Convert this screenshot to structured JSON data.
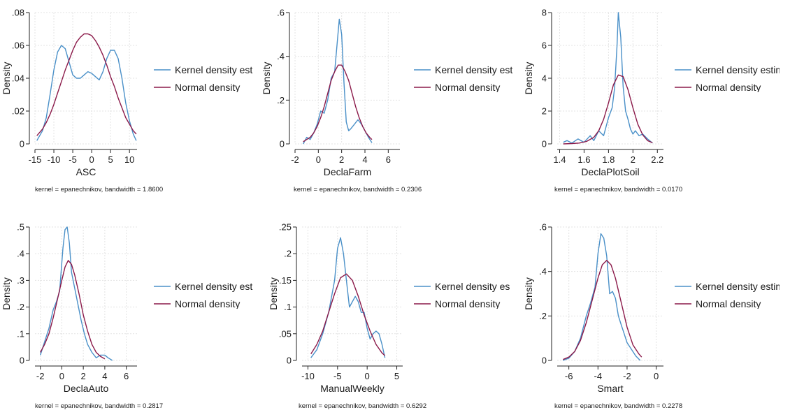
{
  "legend": {
    "kernel_color": "#4a90c8",
    "normal_color": "#8b1a4a"
  },
  "chart_data": [
    {
      "type": "line",
      "xlabel": "ASC",
      "ylabel": "Density",
      "note": "kernel = epanechnikov, bandwidth = 1.8600",
      "xlim": [
        -15,
        12
      ],
      "ylim": [
        0,
        0.08
      ],
      "xticks": [
        -15,
        -10,
        -5,
        0,
        5,
        10
      ],
      "xtick_labels": [
        "-15",
        "-10",
        "-5",
        "0",
        "5",
        "10"
      ],
      "yticks": [
        0,
        0.02,
        0.04,
        0.06,
        0.08
      ],
      "ytick_labels": [
        "0",
        ".02",
        ".04",
        ".06",
        ".08"
      ],
      "legend_labels": [
        "Kernel density est",
        "Normal density"
      ],
      "series": [
        {
          "name": "Kernel density est",
          "x": [
            -14.5,
            -13,
            -12,
            -11,
            -10,
            -9,
            -8,
            -7,
            -6,
            -5,
            -4,
            -3,
            -2,
            -1,
            0,
            1,
            2,
            3,
            4,
            5,
            6,
            7,
            8,
            9,
            10,
            11,
            11.8
          ],
          "y": [
            0.002,
            0.008,
            0.016,
            0.03,
            0.045,
            0.056,
            0.06,
            0.058,
            0.05,
            0.042,
            0.04,
            0.04,
            0.042,
            0.044,
            0.043,
            0.041,
            0.039,
            0.044,
            0.052,
            0.057,
            0.057,
            0.052,
            0.04,
            0.025,
            0.014,
            0.006,
            0.002
          ]
        },
        {
          "name": "Normal density",
          "x": [
            -14.5,
            -13,
            -12,
            -11,
            -10,
            -9,
            -8,
            -7,
            -6,
            -5,
            -4,
            -3,
            -2,
            -1,
            0,
            1,
            2,
            3,
            4,
            5,
            6,
            7,
            8,
            9,
            10,
            11,
            11.8
          ],
          "y": [
            0.005,
            0.009,
            0.013,
            0.018,
            0.024,
            0.031,
            0.038,
            0.045,
            0.051,
            0.057,
            0.062,
            0.065,
            0.067,
            0.067,
            0.066,
            0.063,
            0.059,
            0.054,
            0.048,
            0.041,
            0.035,
            0.028,
            0.022,
            0.016,
            0.012,
            0.008,
            0.006
          ]
        }
      ]
    },
    {
      "type": "line",
      "xlabel": "DeclaFarm",
      "ylabel": "Density",
      "note": "kernel = epanechnikov, bandwidth = 0.2306",
      "xlim": [
        -2,
        7
      ],
      "ylim": [
        0,
        0.6
      ],
      "xticks": [
        -2,
        0,
        2,
        4,
        6
      ],
      "xtick_labels": [
        "-2",
        "0",
        "2",
        "4",
        "6"
      ],
      "yticks": [
        0,
        0.2,
        0.4,
        0.6
      ],
      "ytick_labels": [
        "0",
        ".2",
        ".4",
        ".6"
      ],
      "legend_labels": [
        "Kernel density est",
        "Normal density"
      ],
      "series": [
        {
          "name": "Kernel density est",
          "x": [
            -1.3,
            -1,
            -0.7,
            -0.4,
            -0.1,
            0.2,
            0.5,
            0.8,
            1.1,
            1.4,
            1.6,
            1.8,
            2,
            2.2,
            2.4,
            2.6,
            2.8,
            3.1,
            3.4,
            3.7,
            4,
            4.3,
            4.6
          ],
          "y": [
            0.0,
            0.03,
            0.02,
            0.05,
            0.09,
            0.15,
            0.14,
            0.2,
            0.3,
            0.33,
            0.45,
            0.57,
            0.5,
            0.28,
            0.1,
            0.06,
            0.07,
            0.09,
            0.11,
            0.09,
            0.06,
            0.03,
            0.005
          ]
        },
        {
          "name": "Normal density",
          "x": [
            -1.3,
            -1,
            -0.7,
            -0.4,
            -0.1,
            0.2,
            0.5,
            0.8,
            1.1,
            1.4,
            1.7,
            2,
            2.3,
            2.6,
            2.9,
            3.2,
            3.5,
            3.8,
            4.1,
            4.4,
            4.6
          ],
          "y": [
            0.01,
            0.02,
            0.03,
            0.05,
            0.08,
            0.12,
            0.17,
            0.23,
            0.29,
            0.33,
            0.36,
            0.36,
            0.33,
            0.29,
            0.23,
            0.17,
            0.12,
            0.08,
            0.05,
            0.03,
            0.02
          ]
        }
      ]
    },
    {
      "type": "line",
      "xlabel": "DeclaPlotSoil",
      "ylabel": "Density",
      "note": "kernel = epanechnikov, bandwidth = 0.0170",
      "xlim": [
        1.38,
        2.25
      ],
      "ylim": [
        0,
        8
      ],
      "xticks": [
        1.4,
        1.6,
        1.8,
        2,
        2.2
      ],
      "xtick_labels": [
        "1.4",
        "1.6",
        "1.8",
        "2",
        "2.2"
      ],
      "yticks": [
        0,
        2,
        4,
        6,
        8
      ],
      "ytick_labels": [
        "0",
        "2",
        "4",
        "6",
        "8"
      ],
      "legend_labels": [
        "Kernel density estim",
        "Normal density"
      ],
      "series": [
        {
          "name": "Kernel density estim",
          "x": [
            1.43,
            1.46,
            1.5,
            1.55,
            1.6,
            1.65,
            1.68,
            1.72,
            1.76,
            1.8,
            1.83,
            1.85,
            1.87,
            1.88,
            1.9,
            1.92,
            1.94,
            1.96,
            1.98,
            2.0,
            2.02,
            2.05,
            2.08,
            2.12,
            2.16
          ],
          "y": [
            0.1,
            0.2,
            0.05,
            0.3,
            0.1,
            0.5,
            0.2,
            0.8,
            0.5,
            1.6,
            2.2,
            3.4,
            6.0,
            8.0,
            6.5,
            3.5,
            2.0,
            1.5,
            0.9,
            0.6,
            0.8,
            0.5,
            0.6,
            0.3,
            0.05
          ]
        },
        {
          "name": "Normal density",
          "x": [
            1.43,
            1.5,
            1.56,
            1.62,
            1.68,
            1.72,
            1.76,
            1.8,
            1.84,
            1.88,
            1.92,
            1.96,
            2.0,
            2.04,
            2.08,
            2.12,
            2.16
          ],
          "y": [
            0.0,
            0.02,
            0.05,
            0.15,
            0.4,
            0.8,
            1.5,
            2.5,
            3.6,
            4.2,
            4.1,
            3.3,
            2.2,
            1.2,
            0.55,
            0.2,
            0.07
          ]
        }
      ]
    },
    {
      "type": "line",
      "xlabel": "DeclaAuto",
      "ylabel": "Density",
      "note": "kernel = epanechnikov, bandwidth = 0.2817",
      "xlim": [
        -2.5,
        7
      ],
      "ylim": [
        0,
        0.5
      ],
      "xticks": [
        -2,
        0,
        2,
        4,
        6
      ],
      "xtick_labels": [
        "-2",
        "0",
        "2",
        "4",
        "6"
      ],
      "yticks": [
        0,
        0.1,
        0.2,
        0.3,
        0.4,
        0.5
      ],
      "ytick_labels": [
        "0",
        ".1",
        ".2",
        ".3",
        ".4",
        ".5"
      ],
      "legend_labels": [
        "Kernel density est",
        "Normal density"
      ],
      "series": [
        {
          "name": "Kernel density est",
          "x": [
            -2,
            -1.6,
            -1.2,
            -0.8,
            -0.5,
            -0.2,
            0.1,
            0.3,
            0.5,
            0.7,
            0.9,
            1.2,
            1.5,
            1.8,
            2.1,
            2.4,
            2.8,
            3.2,
            3.6,
            4.0,
            4.3,
            4.7
          ],
          "y": [
            0.02,
            0.07,
            0.12,
            0.19,
            0.22,
            0.26,
            0.42,
            0.49,
            0.5,
            0.44,
            0.33,
            0.27,
            0.21,
            0.15,
            0.1,
            0.06,
            0.03,
            0.01,
            0.02,
            0.02,
            0.01,
            0.0
          ]
        },
        {
          "name": "Normal density",
          "x": [
            -2,
            -1.6,
            -1.2,
            -0.8,
            -0.4,
            0,
            0.3,
            0.6,
            0.9,
            1.2,
            1.6,
            2.0,
            2.4,
            2.8,
            3.2,
            3.6,
            4.0
          ],
          "y": [
            0.03,
            0.06,
            0.1,
            0.16,
            0.23,
            0.3,
            0.35,
            0.375,
            0.36,
            0.32,
            0.25,
            0.17,
            0.11,
            0.06,
            0.03,
            0.015,
            0.006
          ]
        }
      ]
    },
    {
      "type": "line",
      "xlabel": "ManualWeekly",
      "ylabel": "Density",
      "note": "kernel = epanechnikov, bandwidth = 0.6292",
      "xlim": [
        -11,
        6
      ],
      "ylim": [
        0,
        0.25
      ],
      "xticks": [
        -10,
        -5,
        0,
        5
      ],
      "xtick_labels": [
        "-10",
        "-5",
        "0",
        "5"
      ],
      "yticks": [
        0,
        0.05,
        0.1,
        0.15,
        0.2,
        0.25
      ],
      "ytick_labels": [
        "0",
        ".05",
        ".1",
        ".15",
        ".2",
        ".25"
      ],
      "legend_labels": [
        "Kernel density es",
        "Normal density"
      ],
      "series": [
        {
          "name": "Kernel density es",
          "x": [
            -9.5,
            -8.5,
            -7.5,
            -6.5,
            -5.5,
            -5,
            -4.5,
            -4,
            -3.5,
            -3,
            -2.5,
            -2,
            -1.5,
            -1,
            -0.5,
            0,
            0.5,
            1,
            1.5,
            2,
            2.5,
            3
          ],
          "y": [
            0.005,
            0.02,
            0.05,
            0.09,
            0.15,
            0.21,
            0.23,
            0.2,
            0.15,
            0.1,
            0.11,
            0.12,
            0.11,
            0.09,
            0.09,
            0.06,
            0.04,
            0.05,
            0.055,
            0.05,
            0.03,
            0.005
          ]
        },
        {
          "name": "Normal density",
          "x": [
            -9.5,
            -8.5,
            -7.5,
            -6.5,
            -5.5,
            -4.5,
            -3.5,
            -2.5,
            -1.5,
            -0.5,
            0.5,
            1.5,
            2.5,
            3
          ],
          "y": [
            0.012,
            0.03,
            0.055,
            0.09,
            0.125,
            0.155,
            0.162,
            0.15,
            0.12,
            0.085,
            0.055,
            0.03,
            0.014,
            0.009
          ]
        }
      ]
    },
    {
      "type": "line",
      "xlabel": "Smart",
      "ylabel": "Density",
      "note": "kernel = epanechnikov, bandwidth = 0.2278",
      "xlim": [
        -6.8,
        0.5
      ],
      "ylim": [
        0,
        0.6
      ],
      "xticks": [
        -6,
        -4,
        -2,
        0
      ],
      "xtick_labels": [
        "-6",
        "-4",
        "-2",
        "0"
      ],
      "yticks": [
        0,
        0.2,
        0.4,
        0.6
      ],
      "ytick_labels": [
        "0",
        ".2",
        ".4",
        ".6"
      ],
      "legend_labels": [
        "Kernel density estim",
        "Normal density"
      ],
      "series": [
        {
          "name": "Kernel density estim",
          "x": [
            -6.4,
            -6.0,
            -5.6,
            -5.2,
            -4.8,
            -4.5,
            -4.2,
            -4.0,
            -3.8,
            -3.6,
            -3.4,
            -3.2,
            -3.0,
            -2.8,
            -2.6,
            -2.4,
            -2.2,
            -2.0,
            -1.7,
            -1.4,
            -1.1
          ],
          "y": [
            0.0,
            0.01,
            0.04,
            0.1,
            0.2,
            0.26,
            0.33,
            0.48,
            0.57,
            0.55,
            0.47,
            0.3,
            0.31,
            0.28,
            0.2,
            0.16,
            0.12,
            0.08,
            0.05,
            0.02,
            0.0
          ]
        },
        {
          "name": "Normal density",
          "x": [
            -6.4,
            -6.0,
            -5.6,
            -5.2,
            -4.8,
            -4.4,
            -4.0,
            -3.7,
            -3.4,
            -3.1,
            -2.8,
            -2.4,
            -2.0,
            -1.6,
            -1.2,
            -1.0
          ],
          "y": [
            0.004,
            0.015,
            0.04,
            0.09,
            0.17,
            0.27,
            0.37,
            0.43,
            0.45,
            0.43,
            0.37,
            0.26,
            0.15,
            0.07,
            0.03,
            0.015
          ]
        }
      ]
    }
  ]
}
